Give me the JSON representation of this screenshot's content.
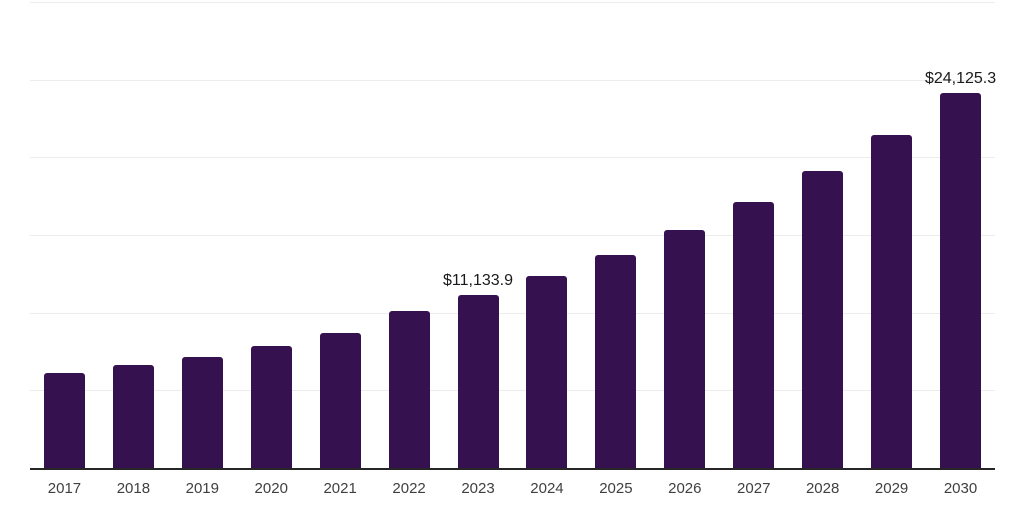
{
  "chart_data": {
    "type": "bar",
    "title": "",
    "xlabel": "",
    "ylabel": "",
    "categories": [
      "2017",
      "2018",
      "2019",
      "2020",
      "2021",
      "2022",
      "2023",
      "2024",
      "2025",
      "2026",
      "2027",
      "2028",
      "2029",
      "2030"
    ],
    "values": [
      6100,
      6600,
      7170,
      7870,
      8700,
      10120,
      11133.9,
      12350,
      13700,
      15300,
      17100,
      19150,
      21450,
      24125.3
    ],
    "value_labels": [
      "",
      "",
      "",
      "",
      "",
      "",
      "$11,133.9",
      "",
      "",
      "",
      "",
      "",
      "",
      "$24,125.3"
    ],
    "ylim": [
      0,
      30000
    ],
    "grid_step": 5000,
    "grid": true,
    "legend": false,
    "colors": {
      "bar": "#36114F",
      "axis_line": "#262626",
      "gridline": "#ececec",
      "tick_label": "#404040",
      "value_label": "#1a1a1a",
      "background": "#ffffff"
    }
  }
}
